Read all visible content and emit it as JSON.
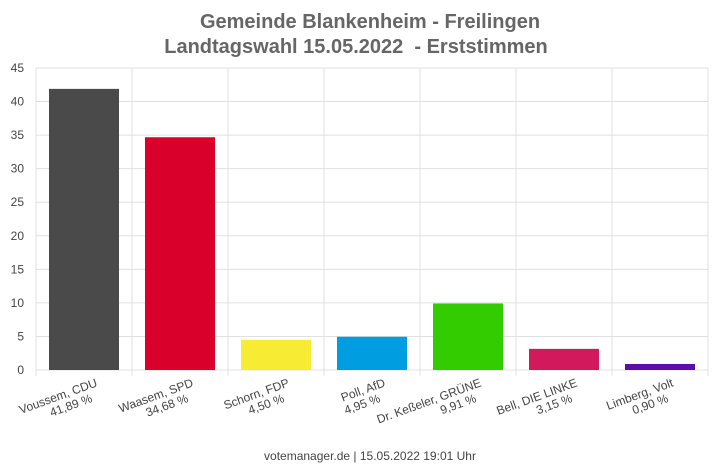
{
  "chart_data": {
    "type": "bar",
    "title": "Gemeinde Blankenheim - Freilingen",
    "subtitle": "Landtagswahl 15.05.2022  - Erststimmen",
    "categories": [
      "Voussem, CDU",
      "Waasem, SPD",
      "Schorn, FDP",
      "Poll, AfD",
      "Dr. Keßeler, GRÜNE",
      "Bell, DIE LINKE",
      "Limberg, Volt"
    ],
    "values": [
      41.89,
      34.68,
      4.5,
      4.95,
      9.91,
      3.15,
      0.9
    ],
    "value_labels": [
      "41,89 %",
      "34,68 %",
      "4,50 %",
      "4,95 %",
      "9,91 %",
      "3,15 %",
      "0,90 %"
    ],
    "colors": [
      "#4a4a4a",
      "#d9002c",
      "#f7ec33",
      "#009ee0",
      "#33cc00",
      "#d2195b",
      "#5b0fa8"
    ],
    "ylim": [
      0,
      45
    ],
    "yticks": [
      0,
      5,
      10,
      15,
      20,
      25,
      30,
      35,
      40,
      45
    ],
    "grid": true,
    "footer": "votemanager.de | 15.05.2022 19:01 Uhr"
  }
}
